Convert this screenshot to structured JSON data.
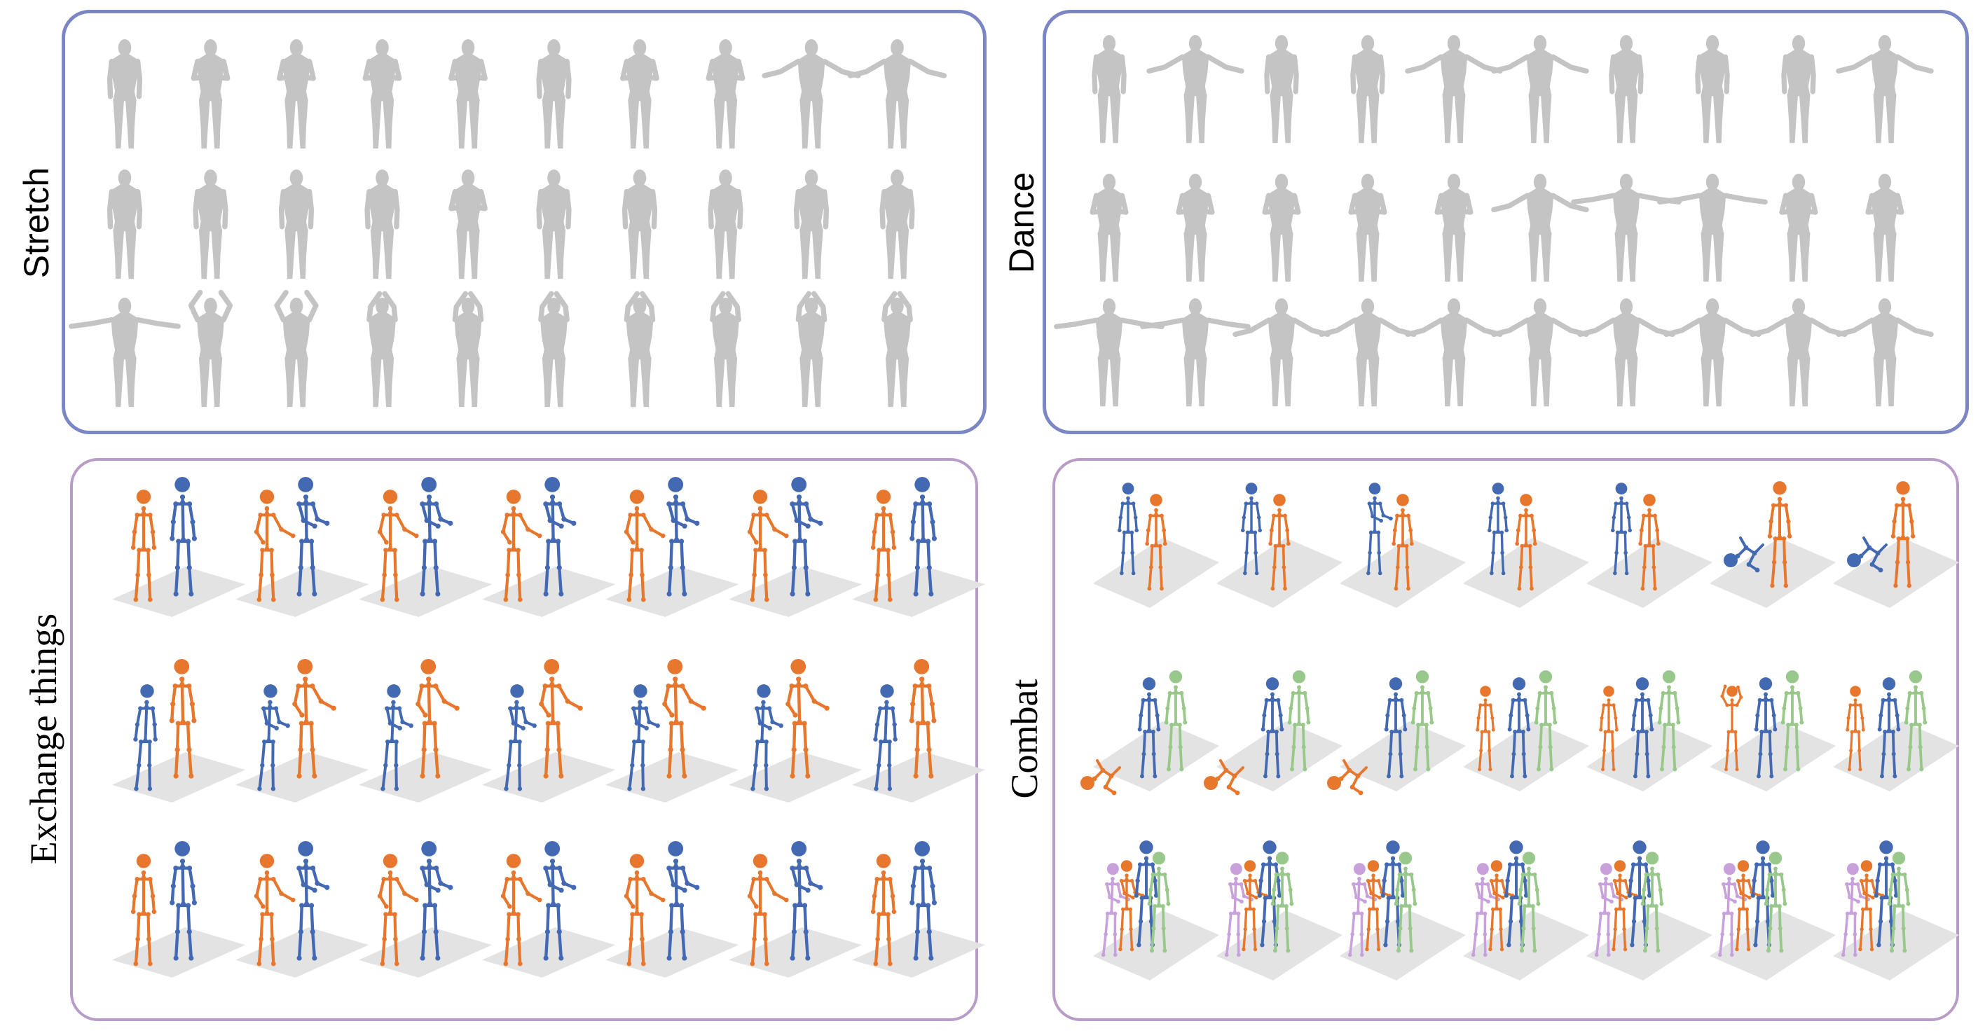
{
  "panels": {
    "stretch": {
      "label": "Stretch",
      "rows": 3,
      "cols": 10
    },
    "dance": {
      "label": "Dance",
      "rows": 3,
      "cols": 10
    },
    "exchange": {
      "label": "Exchange things",
      "rows": 3,
      "cols": 7,
      "figures": [
        "orange",
        "blue"
      ]
    },
    "combat": {
      "label": "Combat",
      "rows": 3,
      "cols": 7
    }
  },
  "colors": {
    "body": "#c4c4c4",
    "floor": "#e3e3e3",
    "orange": "#e8772e",
    "blue": "#4369b3",
    "green": "#98c98a",
    "lavender": "#c8a0dc",
    "stretch_dance_border": "#7b86c4",
    "exchange_combat_border": "#b79cc8"
  },
  "combat_rows": [
    [
      "blue",
      "orange"
    ],
    [
      "orange",
      "blue",
      "green"
    ],
    [
      "lavender",
      "orange",
      "blue",
      "green"
    ]
  ]
}
